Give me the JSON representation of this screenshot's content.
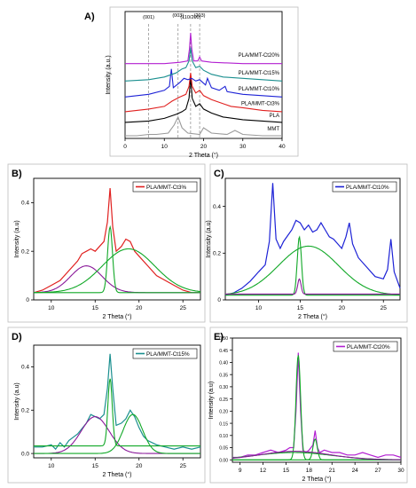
{
  "colors": {
    "axis": "#000000",
    "pla_mmt_ct3": "#e0201f",
    "pla_mmt_ct10": "#1d22d6",
    "pla_mmt_ct15": "#1a8f8f",
    "pla_mmt_ct20": "#b21fd1",
    "fit_green": "#11a827",
    "fit_purple": "#8a1a9a",
    "pla": "#000000",
    "mmt": "#9a9a9a"
  },
  "chart_data": [
    {
      "panel": "A)",
      "type": "line",
      "xlabel": "2 Theta (°)",
      "ylabel": "Intensity (a.u.)",
      "xlim": [
        0,
        40
      ],
      "x_ticks": [
        "0",
        "10",
        "20",
        "30",
        "40"
      ],
      "peak_annotations": [
        {
          "label": "(001)",
          "x": 6.0
        },
        {
          "label": "(003)",
          "x": 13.5
        },
        {
          "label": "(110/200)",
          "x": 16.7
        },
        {
          "label": "(203)",
          "x": 19.0
        }
      ],
      "series": [
        {
          "name": "MMT",
          "color_key": "mmt",
          "offset": 0.0,
          "x": [
            0,
            3,
            6,
            8,
            11,
            12.5,
            13.5,
            14.5,
            16,
            19,
            20,
            22,
            26,
            28,
            30,
            35,
            40
          ],
          "y": [
            0.02,
            0.02,
            0.03,
            0.03,
            0.04,
            0.1,
            0.16,
            0.08,
            0.04,
            0.03,
            0.08,
            0.04,
            0.03,
            0.06,
            0.03,
            0.02,
            0.02
          ]
        },
        {
          "name": "PLA",
          "color_key": "pla",
          "offset": 0.1,
          "x": [
            0,
            6,
            10,
            13,
            14.5,
            15.5,
            16.3,
            16.7,
            17.1,
            18,
            19,
            20,
            22,
            25,
            30,
            35,
            40
          ],
          "y": [
            0.02,
            0.03,
            0.05,
            0.08,
            0.1,
            0.12,
            0.2,
            0.36,
            0.2,
            0.14,
            0.16,
            0.12,
            0.09,
            0.06,
            0.04,
            0.03,
            0.02
          ]
        },
        {
          "name": "PLA/MMT-Ct3%",
          "color_key": "pla_mmt_ct3",
          "offset": 0.19,
          "x": [
            0,
            6,
            10,
            12,
            14,
            15.5,
            16.3,
            16.7,
            17.1,
            18,
            19,
            20,
            22,
            25,
            27,
            30,
            35,
            40
          ],
          "y": [
            0.01,
            0.03,
            0.05,
            0.09,
            0.12,
            0.14,
            0.2,
            0.3,
            0.2,
            0.15,
            0.17,
            0.13,
            0.1,
            0.07,
            0.05,
            0.04,
            0.02,
            0.01
          ]
        },
        {
          "name": "PLA/MMT-Ct10%",
          "color_key": "pla_mmt_ct10",
          "offset": 0.3,
          "x": [
            0,
            6,
            10,
            11.3,
            11.8,
            12.3,
            14,
            15,
            16,
            17,
            18,
            19,
            20.5,
            21,
            22,
            24,
            25.5,
            26,
            28,
            30,
            35,
            40
          ],
          "y": [
            0.01,
            0.03,
            0.06,
            0.09,
            0.22,
            0.08,
            0.12,
            0.15,
            0.14,
            0.15,
            0.13,
            0.14,
            0.1,
            0.15,
            0.08,
            0.06,
            0.09,
            0.05,
            0.04,
            0.03,
            0.02,
            0.01
          ]
        },
        {
          "name": "PLA/MMT-Ct15%",
          "color_key": "pla_mmt_ct15",
          "offset": 0.42,
          "x": [
            0,
            6,
            10,
            13,
            14.5,
            15.5,
            16.3,
            16.7,
            17.1,
            18,
            19,
            20,
            22,
            25,
            30,
            35,
            40
          ],
          "y": [
            0.01,
            0.02,
            0.04,
            0.07,
            0.1,
            0.11,
            0.16,
            0.26,
            0.16,
            0.11,
            0.12,
            0.09,
            0.06,
            0.04,
            0.03,
            0.02,
            0.01
          ]
        },
        {
          "name": "PLA/MMT-Ct20%",
          "color_key": "pla_mmt_ct20",
          "offset": 0.55,
          "x": [
            0,
            6,
            10,
            14,
            16,
            16.4,
            16.7,
            17,
            17.5,
            18.5,
            19,
            19.5,
            22,
            30,
            40
          ],
          "y": [
            0.01,
            0.01,
            0.01,
            0.02,
            0.03,
            0.12,
            0.24,
            0.12,
            0.03,
            0.03,
            0.06,
            0.03,
            0.02,
            0.01,
            0.01
          ]
        }
      ]
    },
    {
      "panel": "B)",
      "type": "line",
      "xlabel": "2 Theta (°)",
      "ylabel": "Intensity (a.u)",
      "xlim": [
        8,
        27
      ],
      "ylim": [
        0,
        0.5
      ],
      "x_ticks": [
        "10",
        "15",
        "20",
        "25"
      ],
      "y_ticks": [
        "0",
        "0.2",
        "0.4"
      ],
      "legend": "PLA/MMT-Ct3%",
      "legend_color_key": "pla_mmt_ct3",
      "series": [
        {
          "role": "data",
          "color_key": "pla_mmt_ct3",
          "x": [
            8,
            9,
            10,
            11,
            12,
            13,
            13.5,
            14,
            14.5,
            15,
            15.5,
            16,
            16.4,
            16.7,
            17,
            17.4,
            18,
            18.5,
            19,
            19.5,
            20,
            21,
            22,
            23,
            24,
            25,
            26,
            27
          ],
          "y": [
            0.03,
            0.04,
            0.06,
            0.08,
            0.12,
            0.16,
            0.19,
            0.2,
            0.21,
            0.2,
            0.22,
            0.24,
            0.32,
            0.46,
            0.3,
            0.2,
            0.22,
            0.25,
            0.24,
            0.2,
            0.18,
            0.14,
            0.1,
            0.08,
            0.06,
            0.04,
            0.03,
            0.03
          ]
        },
        {
          "role": "fit",
          "color_key": "fit_purple",
          "baseline": 0.03,
          "peaks": [
            {
              "center": 14.0,
              "height": 0.11,
              "width": 1.8
            }
          ]
        },
        {
          "role": "fit",
          "color_key": "fit_green",
          "baseline": 0.03,
          "peaks": [
            {
              "center": 16.7,
              "height": 0.27,
              "width": 0.28
            }
          ]
        },
        {
          "role": "fit",
          "color_key": "fit_green",
          "baseline": 0.03,
          "peaks": [
            {
              "center": 18.8,
              "height": 0.18,
              "width": 3.0
            }
          ]
        }
      ]
    },
    {
      "panel": "C)",
      "type": "line",
      "xlabel": "2 Theta (°)",
      "ylabel": "Intensity (a.u)",
      "xlim": [
        6,
        27
      ],
      "ylim": [
        0,
        0.52
      ],
      "x_ticks": [
        "10",
        "15",
        "20",
        "25"
      ],
      "y_ticks": [
        "0",
        "0.2",
        "0.4"
      ],
      "legend": "PLA/MMT-Ct10%",
      "legend_color_key": "pla_mmt_ct10",
      "series": [
        {
          "role": "data",
          "color_key": "pla_mmt_ct10",
          "x": [
            6,
            7,
            8,
            9,
            10,
            10.8,
            11.3,
            11.7,
            12.1,
            12.6,
            13,
            14,
            14.5,
            15,
            15.5,
            16,
            16.5,
            17,
            17.5,
            18,
            18.5,
            19,
            20,
            20.5,
            20.9,
            21.3,
            22,
            23,
            24,
            25,
            25.5,
            25.9,
            26.3,
            27
          ],
          "y": [
            0.02,
            0.03,
            0.05,
            0.08,
            0.12,
            0.15,
            0.25,
            0.5,
            0.26,
            0.22,
            0.25,
            0.3,
            0.34,
            0.33,
            0.3,
            0.32,
            0.29,
            0.3,
            0.33,
            0.3,
            0.27,
            0.26,
            0.22,
            0.27,
            0.33,
            0.24,
            0.18,
            0.14,
            0.1,
            0.09,
            0.13,
            0.26,
            0.12,
            0.05
          ]
        },
        {
          "role": "fit",
          "color_key": "fit_green",
          "baseline": 0.02,
          "peaks": [
            {
              "center": 16.0,
              "height": 0.21,
              "width": 3.6
            }
          ]
        },
        {
          "role": "fit",
          "color_key": "fit_green",
          "baseline": 0.02,
          "peaks": [
            {
              "center": 14.9,
              "height": 0.25,
              "width": 0.25
            }
          ]
        },
        {
          "role": "fit",
          "color_key": "fit_purple",
          "baseline": 0.025,
          "peaks": [
            {
              "center": 14.9,
              "height": 0.065,
              "width": 0.2
            }
          ]
        }
      ]
    },
    {
      "panel": "D)",
      "type": "line",
      "xlabel": "2 Theta (°)",
      "ylabel": "Intensity (a.u)",
      "xlim": [
        8,
        27
      ],
      "ylim": [
        -0.02,
        0.5
      ],
      "x_ticks": [
        "10",
        "15",
        "20",
        "25"
      ],
      "y_ticks": [
        "0.0",
        "0.2",
        "0.4"
      ],
      "legend": "PLA/MMT-Ct15%",
      "legend_color_key": "pla_mmt_ct15",
      "series": [
        {
          "role": "data",
          "color_key": "pla_mmt_ct15",
          "x": [
            8,
            9,
            10,
            10.5,
            11,
            11.5,
            12,
            13,
            14,
            14.5,
            15,
            15.5,
            16,
            16.4,
            16.7,
            17,
            17.4,
            18,
            18.5,
            19,
            19.5,
            20,
            20.5,
            21,
            22,
            23,
            24,
            25,
            26,
            27
          ],
          "y": [
            0.03,
            0.03,
            0.04,
            0.02,
            0.05,
            0.03,
            0.06,
            0.09,
            0.14,
            0.18,
            0.17,
            0.16,
            0.18,
            0.3,
            0.46,
            0.3,
            0.13,
            0.14,
            0.16,
            0.2,
            0.17,
            0.12,
            0.08,
            0.06,
            0.04,
            0.03,
            0.02,
            0.03,
            0.02,
            0.03
          ]
        },
        {
          "role": "fit",
          "color_key": "fit_purple",
          "baseline": 0.0,
          "peaks": [
            {
              "center": 15.0,
              "height": 0.17,
              "width": 1.6
            }
          ]
        },
        {
          "role": "fit",
          "color_key": "fit_green",
          "baseline": 0.035,
          "peaks": [
            {
              "center": 16.7,
              "height": 0.31,
              "width": 0.25
            }
          ]
        },
        {
          "role": "fit",
          "color_key": "fit_green",
          "baseline": 0.0,
          "peaks": [
            {
              "center": 19.3,
              "height": 0.18,
              "width": 1.1
            }
          ]
        }
      ]
    },
    {
      "panel": "E)",
      "type": "line",
      "xlabel": "2 Theta (°)",
      "ylabel": "Intensity (a.u)",
      "xlim": [
        8,
        30
      ],
      "ylim": [
        -0.01,
        0.5
      ],
      "x_ticks": [
        "9",
        "12",
        "15",
        "18",
        "21",
        "24",
        "27",
        "30"
      ],
      "y_ticks": [
        "0.00",
        "0.05",
        "0.10",
        "0.15",
        "0.20",
        "0.25",
        "0.30",
        "0.35",
        "0.40",
        "0.45",
        "0.50"
      ],
      "legend": "PLA/MMT-Ct20%",
      "legend_color_key": "pla_mmt_ct20",
      "series": [
        {
          "role": "data",
          "color_key": "pla_mmt_ct20",
          "x": [
            8,
            9,
            10,
            11,
            12,
            13,
            14,
            15,
            15.5,
            16,
            16.3,
            16.6,
            16.9,
            17.2,
            17.6,
            18,
            18.5,
            18.8,
            19.1,
            19.4,
            20,
            21,
            22,
            23,
            24,
            25,
            26,
            27,
            28,
            29,
            30
          ],
          "y": [
            0.01,
            0.01,
            0.02,
            0.02,
            0.03,
            0.04,
            0.03,
            0.04,
            0.05,
            0.05,
            0.2,
            0.44,
            0.2,
            0.04,
            0.03,
            0.04,
            0.06,
            0.12,
            0.05,
            0.03,
            0.04,
            0.03,
            0.03,
            0.02,
            0.02,
            0.03,
            0.02,
            0.01,
            0.02,
            0.02,
            0.01
          ]
        },
        {
          "role": "fit",
          "color_key": "fit_green",
          "baseline": 0.0,
          "peaks": [
            {
              "center": 16.6,
              "height": 0.43,
              "width": 0.3
            }
          ]
        },
        {
          "role": "fit",
          "color_key": "fit_green",
          "baseline": 0.0,
          "peaks": [
            {
              "center": 18.8,
              "height": 0.085,
              "width": 0.28
            }
          ]
        },
        {
          "role": "fit",
          "color_key": "fit_green",
          "baseline": 0.0,
          "peaks": [
            {
              "center": 16.0,
              "height": 0.03,
              "width": 5.0
            }
          ]
        },
        {
          "role": "fit",
          "color_key": "fit_purple",
          "baseline": 0.0,
          "peaks": [
            {
              "center": 16.2,
              "height": 0.035,
              "width": 4.5
            }
          ]
        }
      ]
    }
  ]
}
